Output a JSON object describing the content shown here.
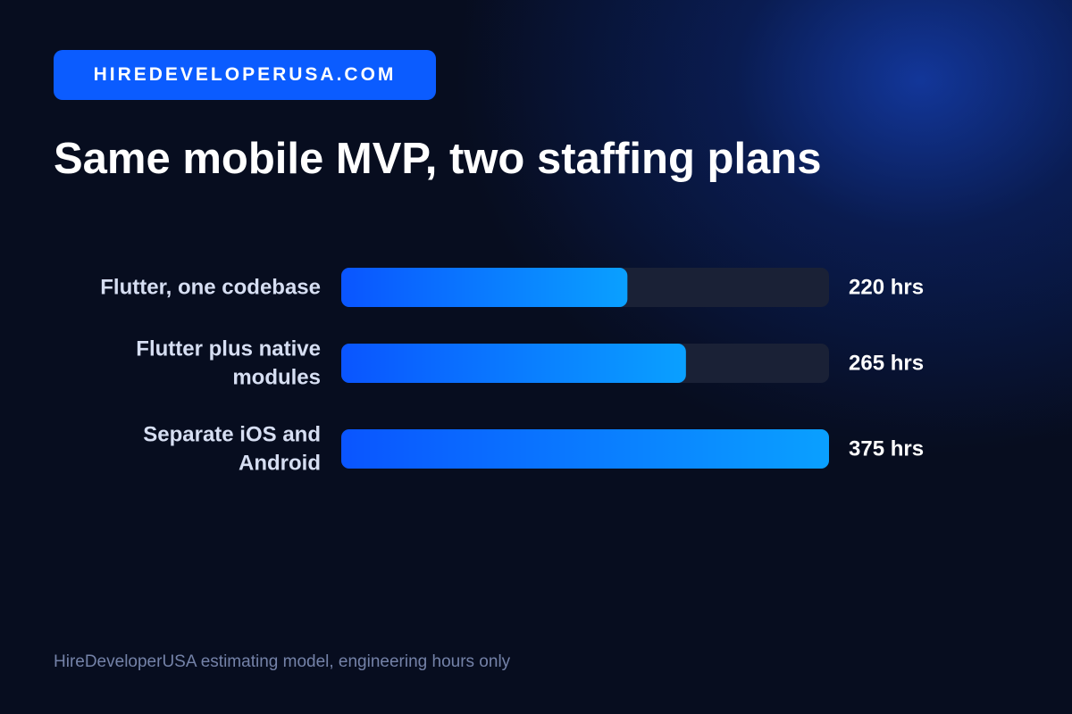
{
  "brand": {
    "label": "HIREDEVELOPERUSA.COM",
    "color": "#0b5cff"
  },
  "title": "Same mobile MVP, two staffing plans",
  "footnote": "HireDeveloperUSA estimating model, engineering hours only",
  "colors": {
    "bar_start": "#0a55ff",
    "bar_end": "#0aa0ff",
    "track": "#1a2136"
  },
  "chart_data": {
    "type": "bar",
    "orientation": "horizontal",
    "categories": [
      [
        "Flutter, one codebase"
      ],
      [
        "Flutter plus native",
        "modules"
      ],
      [
        "Separate iOS and",
        "Android"
      ]
    ],
    "values": [
      220,
      265,
      375
    ],
    "value_labels": [
      "220 hrs",
      "265 hrs",
      "375 hrs"
    ],
    "unit": "hrs",
    "xlim": [
      0,
      375
    ],
    "grid": false,
    "legend": "none"
  }
}
